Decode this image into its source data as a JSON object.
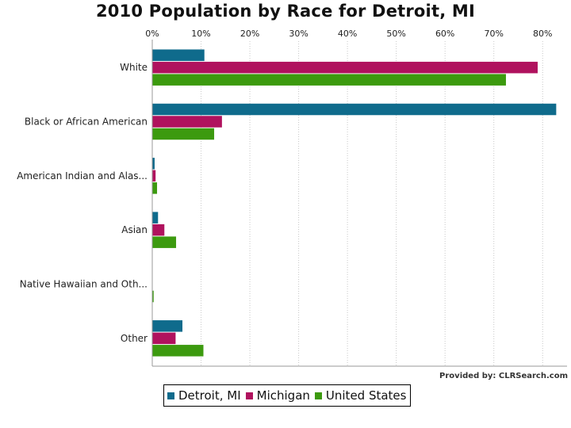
{
  "chart_data": {
    "type": "bar",
    "orientation": "horizontal",
    "title": "2010 Population by Race for Detroit, MI",
    "categories": [
      "White",
      "Black or African American",
      "American Indian and Alas...",
      "Asian",
      "Native Hawaiian and Oth...",
      "Other"
    ],
    "series": [
      {
        "name": "Detroit, MI",
        "color": "#0f6b8c",
        "values": [
          10.6,
          82.7,
          0.4,
          1.1,
          0.0,
          6.1
        ]
      },
      {
        "name": "Michigan",
        "color": "#b0125e",
        "values": [
          78.9,
          14.2,
          0.6,
          2.4,
          0.0,
          4.7
        ]
      },
      {
        "name": "United States",
        "color": "#3c9a0f",
        "values": [
          72.4,
          12.6,
          0.9,
          4.8,
          0.2,
          10.4
        ]
      }
    ],
    "xlim": [
      0,
      85
    ],
    "ticks": [
      0,
      10,
      20,
      30,
      40,
      50,
      60,
      70,
      80
    ],
    "tick_labels": [
      "0%",
      "10%",
      "20%",
      "30%",
      "40%",
      "50%",
      "60%",
      "70%",
      "80%"
    ],
    "xlabel": "",
    "ylabel": "",
    "grid": true,
    "legend_position": "bottom-left"
  },
  "credit": "Provided by: CLRSearch.com"
}
